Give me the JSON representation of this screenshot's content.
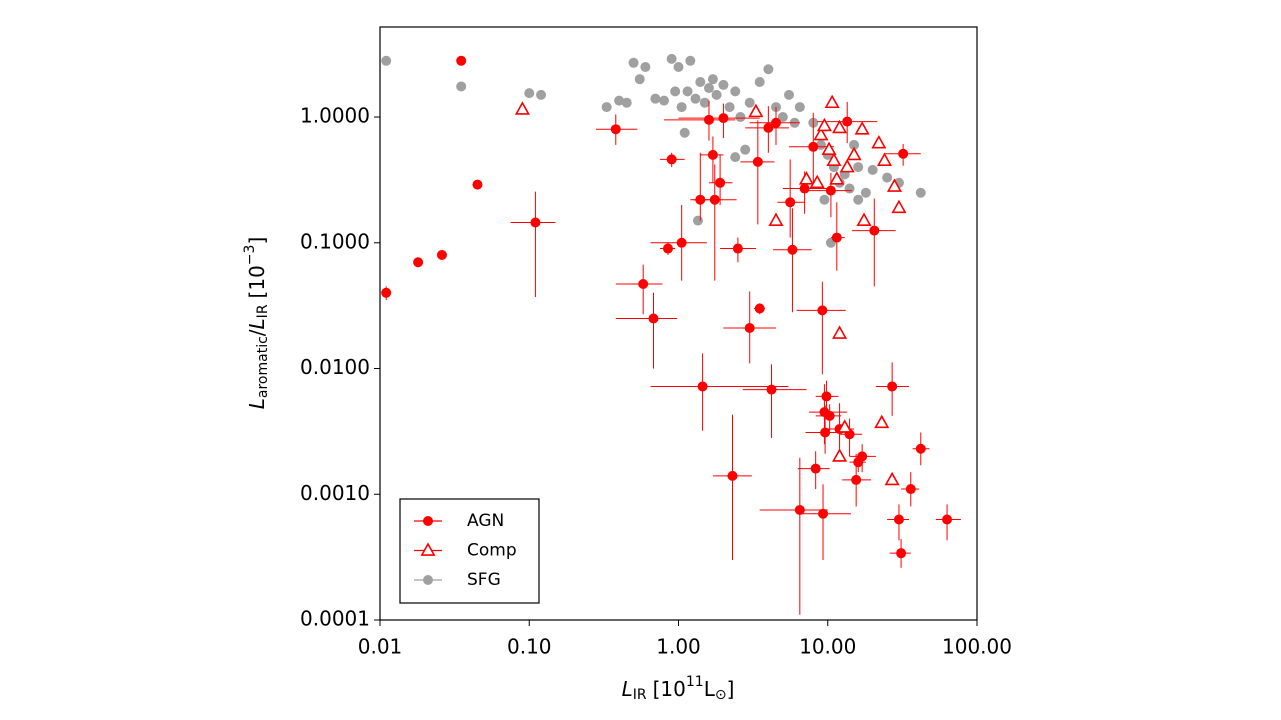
{
  "chart_data": {
    "type": "scatter",
    "xlabel": [
      "L",
      "IR",
      "[10",
      "11",
      "L",
      "⊙",
      "]"
    ],
    "ylabel": [
      "L",
      "aromatic",
      "/",
      "L",
      "IR",
      "[10",
      "−3",
      "]"
    ],
    "xlim": [
      0.01,
      100
    ],
    "ylim": [
      0.0001,
      5.2
    ],
    "xlog": true,
    "ylog": true,
    "xticks": [
      0.01,
      {
        "value": 0.1,
        "label": "0.10"
      },
      {
        "value": 1,
        "label": "1.00"
      },
      {
        "value": 10,
        "label": "10.00"
      },
      {
        "value": 100,
        "label": "100.00"
      }
    ],
    "yticks": [
      0.0001,
      {
        "value": 0.001,
        "label": "0.0010"
      },
      {
        "value": 0.01,
        "label": "0.0100"
      },
      {
        "value": 0.1,
        "label": "0.1000"
      },
      {
        "value": 1,
        "label": "1.0000"
      }
    ],
    "legend": "lower left",
    "series": [
      {
        "name": "AGN",
        "color": "#ff0000",
        "marker": "circle",
        "x": [
          0.011,
          0.018,
          0.026,
          0.035,
          0.045,
          0.11,
          0.38,
          0.9,
          0.85,
          1.05,
          1.4,
          1.6,
          1.7,
          1.75,
          1.9,
          2.0,
          2.5,
          3.4,
          4.0,
          4.5,
          5.6,
          5.8,
          7.0,
          8.0,
          10.5,
          11.5,
          13.5,
          20.5,
          32,
          0.58,
          0.68,
          3.0,
          3.5,
          9.2,
          1.45,
          4.2,
          27,
          9.5,
          9.8,
          10.3,
          9.6,
          12,
          14,
          17,
          15.5,
          8.3,
          2.3,
          6.5,
          9.3,
          30,
          31,
          36,
          42,
          63,
          16
        ],
        "y": [
          0.04,
          0.07,
          0.08,
          2.8,
          0.29,
          0.145,
          0.8,
          0.46,
          0.09,
          0.1,
          0.22,
          0.95,
          0.5,
          0.22,
          0.3,
          0.98,
          0.09,
          0.44,
          0.82,
          0.9,
          0.21,
          0.088,
          0.27,
          0.58,
          0.26,
          0.11,
          0.92,
          0.125,
          0.51,
          0.047,
          0.025,
          0.021,
          0.03,
          0.029,
          0.0072,
          0.0068,
          0.0072,
          0.0045,
          0.006,
          0.0042,
          0.0031,
          0.0033,
          0.003,
          0.002,
          0.0013,
          0.0016,
          0.0014,
          0.00075,
          0.0007,
          0.00063,
          0.00034,
          0.0011,
          0.0023,
          0.00063,
          0.0018
        ],
        "xerr": [
          [
            0,
            0
          ],
          [
            0,
            0
          ],
          [
            0,
            0
          ],
          [
            0,
            0
          ],
          [
            0,
            0
          ],
          [
            0.035,
            0.04
          ],
          [
            0.1,
            0.15
          ],
          [
            0.15,
            0.2
          ],
          [
            0.1,
            0.1
          ],
          [
            0.4,
            0.5
          ],
          [
            0.2,
            0.3
          ],
          [
            0.8,
            0.8
          ],
          [
            0.3,
            0.3
          ],
          [
            0.5,
            0.7
          ],
          [
            0.3,
            0.4
          ],
          [
            1.0,
            1.5
          ],
          [
            0.6,
            0.8
          ],
          [
            0.8,
            1.0
          ],
          [
            1.2,
            1.5
          ],
          [
            1.5,
            2.0
          ],
          [
            1.0,
            1.4
          ],
          [
            1.5,
            2.0
          ],
          [
            2.0,
            3.0
          ],
          [
            2.5,
            3.0
          ],
          [
            3.0,
            4.0
          ],
          [
            1.0,
            1.5
          ],
          [
            5.0,
            8.0
          ],
          [
            6.0,
            8.0
          ],
          [
            8.0,
            10.0
          ],
          [
            0.2,
            0.2
          ],
          [
            0.3,
            0.3
          ],
          [
            1.0,
            1.5
          ],
          [
            0.3,
            0.3
          ],
          [
            3.0,
            4.0
          ],
          [
            0.8,
            4.0
          ],
          [
            1.5,
            3.0
          ],
          [
            6.0,
            8.0
          ],
          [
            2.0,
            4.0
          ],
          [
            1.5,
            2.0
          ],
          [
            2.0,
            2.0
          ],
          [
            2.5,
            3.0
          ],
          [
            2.0,
            3.0
          ],
          [
            2.0,
            3.0
          ],
          [
            3.0,
            4.0
          ],
          [
            3.0,
            4.0
          ],
          [
            2.0,
            2.0
          ],
          [
            0.6,
            0.8
          ],
          [
            3.0,
            3.5
          ],
          [
            3.0,
            5.0
          ],
          [
            5.0,
            5.0
          ],
          [
            5.0,
            5.0
          ],
          [
            5.0,
            5.0
          ],
          [
            5.0,
            6.0
          ],
          [
            10.0,
            15.0
          ],
          [
            2.0,
            2.0
          ]
        ],
        "yerr": [
          [
            0.005,
            0.005
          ],
          [
            0,
            0
          ],
          [
            0,
            0
          ],
          [
            0,
            0
          ],
          [
            0,
            0
          ],
          [
            0.108,
            0.11
          ],
          [
            0.2,
            0.25
          ],
          [
            0.06,
            0.06
          ],
          [
            0.01,
            0.01
          ],
          [
            0.05,
            0.1
          ],
          [
            0.07,
            0.3
          ],
          [
            0.3,
            0.4
          ],
          [
            0.2,
            0.2
          ],
          [
            0.17,
            0.2
          ],
          [
            0.1,
            0.2
          ],
          [
            0.3,
            0.3
          ],
          [
            0.02,
            0.02
          ],
          [
            0.3,
            0.5
          ],
          [
            0.3,
            0.4
          ],
          [
            0.3,
            0.3
          ],
          [
            0.1,
            0.25
          ],
          [
            0.06,
            0.1
          ],
          [
            0.1,
            0.1
          ],
          [
            0.3,
            0.5
          ],
          [
            0.1,
            0.1
          ],
          [
            0.05,
            0.1
          ],
          [
            0.3,
            0.4
          ],
          [
            0.08,
            0.1
          ],
          [
            0.1,
            0.1
          ],
          [
            0.02,
            0.02
          ],
          [
            0.015,
            0.015
          ],
          [
            0.01,
            0.02
          ],
          [
            0.003,
            0.003
          ],
          [
            0.02,
            0.02
          ],
          [
            0.004,
            0.006
          ],
          [
            0.004,
            0.004
          ],
          [
            0.003,
            0.004
          ],
          [
            0.002,
            0.003
          ],
          [
            0.002,
            0.002
          ],
          [
            0.001,
            0.001
          ],
          [
            0.001,
            0.002
          ],
          [
            0.001,
            0.002
          ],
          [
            0.001,
            0.001
          ],
          [
            0.0005,
            0.0005
          ],
          [
            0.0005,
            0.0008
          ],
          [
            0.0005,
            0.0006
          ],
          [
            0.0011,
            0.0029
          ],
          [
            0.00064,
            0.0012
          ],
          [
            0.0004,
            0.0005
          ],
          [
            0.0002,
            0.0002
          ],
          [
            8e-05,
            0.0001
          ],
          [
            0.0003,
            0.0004
          ],
          [
            0.0006,
            0.0008
          ],
          [
            0.0002,
            0.0002
          ],
          [
            0.0003,
            0.0003
          ]
        ]
      },
      {
        "name": "Comp",
        "color": "#ff0000",
        "marker": "triangle",
        "x": [
          0.09,
          3.3,
          4.5,
          7.2,
          8.5,
          9,
          9.5,
          10.2,
          10.7,
          11,
          11.5,
          12,
          13.5,
          15,
          17,
          17.5,
          22,
          24,
          28,
          30,
          12,
          13,
          12,
          23,
          27
        ],
        "y": [
          1.15,
          1.1,
          0.15,
          0.32,
          0.3,
          0.72,
          0.85,
          0.55,
          1.3,
          0.45,
          0.32,
          0.82,
          0.4,
          0.5,
          0.8,
          0.15,
          0.62,
          0.45,
          0.28,
          0.19,
          0.019,
          0.0034,
          0.002,
          0.0037,
          0.0013
        ]
      },
      {
        "name": "SFG",
        "color": "#a0a0a0",
        "marker": "circle",
        "x": [
          0.011,
          0.035,
          0.1,
          0.12,
          0.33,
          0.4,
          0.45,
          0.5,
          0.55,
          0.6,
          0.7,
          0.8,
          0.9,
          0.95,
          1.0,
          1.05,
          1.1,
          1.15,
          1.2,
          1.3,
          1.4,
          1.5,
          1.6,
          1.7,
          1.8,
          2.0,
          2.2,
          2.4,
          2.6,
          2.8,
          3.0,
          3.5,
          4.0,
          4.5,
          5.0,
          5.5,
          6.0,
          6.5,
          8.0,
          9.0,
          10,
          11,
          12,
          13,
          14,
          15,
          16,
          18,
          20,
          25,
          30,
          42,
          10.5,
          1.35,
          2.4,
          9.5,
          16
        ],
        "y": [
          2.8,
          1.75,
          1.55,
          1.5,
          1.2,
          1.35,
          1.3,
          2.7,
          2.0,
          2.5,
          1.4,
          1.35,
          2.9,
          1.6,
          2.5,
          1.2,
          0.75,
          1.6,
          2.8,
          1.4,
          1.9,
          1.3,
          1.7,
          2.0,
          1.5,
          1.8,
          1.2,
          1.6,
          1.0,
          0.55,
          1.3,
          1.9,
          2.4,
          1.2,
          1.0,
          1.5,
          0.9,
          1.2,
          0.9,
          0.6,
          0.5,
          0.4,
          0.3,
          0.35,
          0.27,
          0.6,
          0.4,
          0.25,
          0.38,
          0.33,
          0.3,
          0.25,
          0.1,
          0.15,
          0.48,
          0.22,
          0.22
        ]
      }
    ]
  }
}
